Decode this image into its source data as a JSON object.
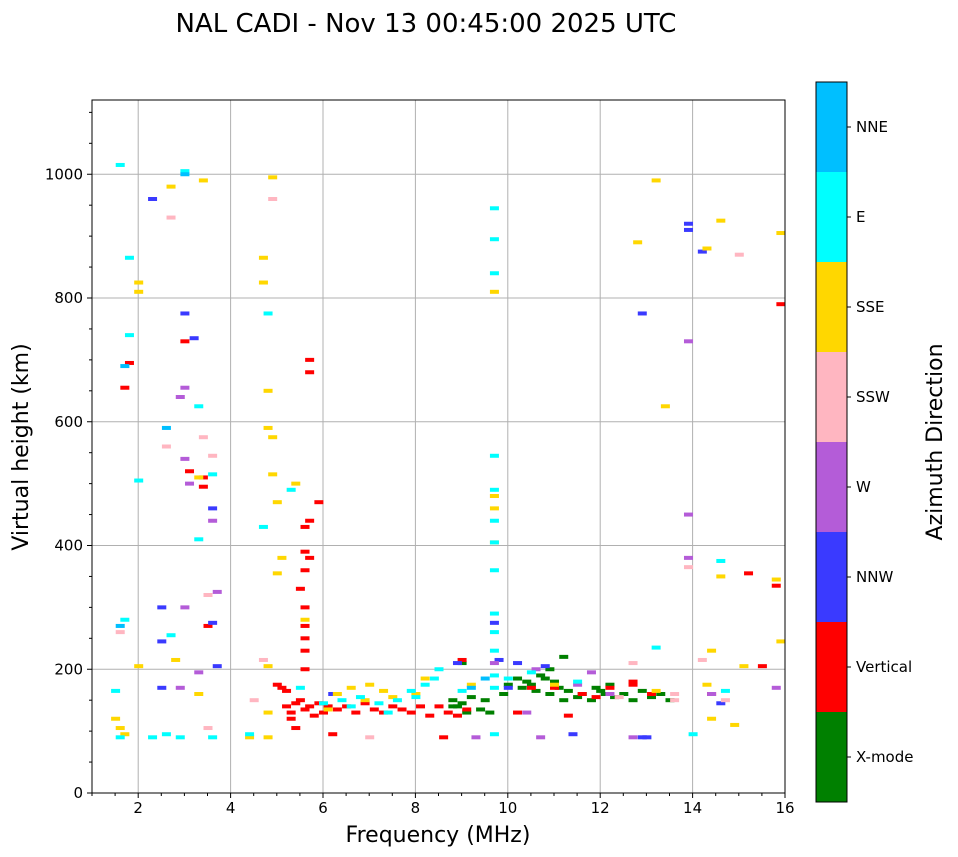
{
  "chart_data": {
    "type": "scatter",
    "title": "NAL CADI - Nov 13 00:45:00 2025 UTC",
    "xlabel": "Frequency (MHz)",
    "ylabel": "Virtual height (km)",
    "xlim": [
      1,
      16
    ],
    "ylim": [
      0,
      1120
    ],
    "xticks": [
      2,
      4,
      6,
      8,
      10,
      12,
      14,
      16
    ],
    "yticks": [
      0,
      200,
      400,
      600,
      800,
      1000
    ],
    "xtick_labels": [
      "2",
      "4",
      "6",
      "8",
      "10",
      "12",
      "14",
      "16"
    ],
    "ytick_labels": [
      "0",
      "200",
      "400",
      "600",
      "800",
      "1000"
    ],
    "grid": true,
    "colorbar": {
      "title": "Azimuth Direction",
      "categories": [
        "X-mode",
        "Vertical",
        "NNW",
        "W",
        "SSW",
        "SSE",
        "E",
        "NNE"
      ],
      "colors": [
        "#008000",
        "#ff0000",
        "#3a3aff",
        "#b45cd8",
        "#ffb6c1",
        "#ffd700",
        "#00ffff",
        "#00bfff"
      ]
    },
    "series": [
      {
        "category": "X-mode",
        "points": [
          [
            8.8,
            150
          ],
          [
            8.9,
            140
          ],
          [
            9.0,
            145
          ],
          [
            9.1,
            130
          ],
          [
            9.2,
            155
          ],
          [
            9.4,
            135
          ],
          [
            9.5,
            150
          ],
          [
            9.6,
            130
          ],
          [
            9.9,
            160
          ],
          [
            10.0,
            175
          ],
          [
            10.2,
            185
          ],
          [
            10.3,
            170
          ],
          [
            10.4,
            180
          ],
          [
            10.5,
            175
          ],
          [
            10.6,
            165
          ],
          [
            10.7,
            190
          ],
          [
            10.8,
            185
          ],
          [
            10.9,
            160
          ],
          [
            11.0,
            180
          ],
          [
            11.1,
            170
          ],
          [
            11.2,
            150
          ],
          [
            11.3,
            165
          ],
          [
            11.5,
            155
          ],
          [
            11.6,
            160
          ],
          [
            11.8,
            150
          ],
          [
            11.9,
            170
          ],
          [
            12.0,
            165
          ],
          [
            12.2,
            175
          ],
          [
            12.3,
            155
          ],
          [
            12.5,
            160
          ],
          [
            12.7,
            150
          ],
          [
            12.9,
            165
          ],
          [
            13.1,
            155
          ],
          [
            13.3,
            160
          ],
          [
            13.5,
            150
          ],
          [
            11.2,
            220
          ],
          [
            9.0,
            210
          ],
          [
            8.8,
            140
          ],
          [
            10.9,
            200
          ],
          [
            12.1,
            160
          ]
        ]
      },
      {
        "category": "Vertical",
        "points": [
          [
            5.2,
            140
          ],
          [
            5.3,
            130
          ],
          [
            5.4,
            145
          ],
          [
            5.5,
            150
          ],
          [
            5.6,
            135
          ],
          [
            5.7,
            140
          ],
          [
            5.8,
            125
          ],
          [
            5.9,
            145
          ],
          [
            6.0,
            130
          ],
          [
            6.1,
            140
          ],
          [
            6.3,
            135
          ],
          [
            6.5,
            140
          ],
          [
            6.7,
            130
          ],
          [
            6.9,
            145
          ],
          [
            7.1,
            135
          ],
          [
            7.3,
            130
          ],
          [
            7.5,
            140
          ],
          [
            7.7,
            135
          ],
          [
            7.9,
            130
          ],
          [
            8.1,
            140
          ],
          [
            8.3,
            125
          ],
          [
            8.5,
            140
          ],
          [
            8.7,
            130
          ],
          [
            8.9,
            125
          ],
          [
            9.1,
            135
          ],
          [
            10.2,
            130
          ],
          [
            10.5,
            170
          ],
          [
            11.0,
            170
          ],
          [
            11.3,
            125
          ],
          [
            11.6,
            160
          ],
          [
            11.9,
            155
          ],
          [
            12.2,
            170
          ],
          [
            12.7,
            175
          ],
          [
            13.1,
            160
          ],
          [
            14.4,
            160
          ],
          [
            15.2,
            355
          ],
          [
            15.8,
            335
          ],
          [
            15.9,
            790
          ],
          [
            15.5,
            205
          ],
          [
            12.7,
            180
          ],
          [
            5.6,
            200
          ],
          [
            5.6,
            230
          ],
          [
            5.6,
            250
          ],
          [
            5.6,
            270
          ],
          [
            5.6,
            300
          ],
          [
            5.5,
            330
          ],
          [
            5.6,
            360
          ],
          [
            5.7,
            380
          ],
          [
            5.6,
            390
          ],
          [
            5.6,
            430
          ],
          [
            5.9,
            470
          ],
          [
            5.7,
            440
          ],
          [
            6.2,
            95
          ],
          [
            5.4,
            105
          ],
          [
            3.1,
            520
          ],
          [
            3.0,
            730
          ],
          [
            3.4,
            495
          ],
          [
            3.5,
            270
          ],
          [
            1.7,
            655
          ],
          [
            1.8,
            695
          ],
          [
            5.2,
            165
          ],
          [
            5.1,
            170
          ],
          [
            5.0,
            175
          ],
          [
            5.7,
            680
          ],
          [
            5.7,
            700
          ],
          [
            3.4,
            510
          ],
          [
            9.0,
            215
          ],
          [
            8.6,
            90
          ],
          [
            5.3,
            120
          ]
        ]
      },
      {
        "category": "NNW",
        "points": [
          [
            8.9,
            210
          ],
          [
            9.8,
            215
          ],
          [
            10.2,
            210
          ],
          [
            10.8,
            205
          ],
          [
            12.9,
            775
          ],
          [
            12.9,
            90
          ],
          [
            13.9,
            920
          ],
          [
            13.9,
            910
          ],
          [
            14.2,
            875
          ],
          [
            14.6,
            145
          ],
          [
            2.5,
            300
          ],
          [
            2.5,
            170
          ],
          [
            3.0,
            775
          ],
          [
            3.6,
            460
          ],
          [
            3.7,
            205
          ],
          [
            3.2,
            735
          ],
          [
            2.3,
            960
          ],
          [
            2.5,
            245
          ],
          [
            3.6,
            275
          ],
          [
            9.7,
            275
          ],
          [
            10.0,
            170
          ],
          [
            11.4,
            95
          ],
          [
            13.0,
            90
          ],
          [
            6.2,
            160
          ]
        ]
      },
      {
        "category": "W",
        "points": [
          [
            9.7,
            210
          ],
          [
            10.6,
            200
          ],
          [
            11.8,
            195
          ],
          [
            13.9,
            730
          ],
          [
            13.9,
            450
          ],
          [
            13.9,
            380
          ],
          [
            15.8,
            170
          ],
          [
            12.7,
            90
          ],
          [
            10.7,
            90
          ],
          [
            9.3,
            90
          ],
          [
            3.0,
            655
          ],
          [
            3.0,
            540
          ],
          [
            2.9,
            640
          ],
          [
            3.1,
            500
          ],
          [
            3.6,
            440
          ],
          [
            3.7,
            325
          ],
          [
            2.9,
            170
          ],
          [
            3.3,
            195
          ],
          [
            10.4,
            130
          ],
          [
            11.5,
            175
          ],
          [
            14.4,
            160
          ],
          [
            12.2,
            160
          ],
          [
            3.0,
            300
          ]
        ]
      },
      {
        "category": "SSW",
        "points": [
          [
            12.7,
            210
          ],
          [
            13.6,
            160
          ],
          [
            14.2,
            215
          ],
          [
            14.7,
            150
          ],
          [
            15.0,
            870
          ],
          [
            13.9,
            365
          ],
          [
            3.4,
            575
          ],
          [
            3.6,
            545
          ],
          [
            3.5,
            320
          ],
          [
            4.7,
            215
          ],
          [
            4.5,
            150
          ],
          [
            2.6,
            560
          ],
          [
            2.7,
            930
          ],
          [
            3.5,
            105
          ],
          [
            1.6,
            260
          ],
          [
            7.0,
            90
          ],
          [
            4.9,
            960
          ],
          [
            13.6,
            150
          ],
          [
            12.4,
            155
          ],
          [
            9.7,
            480
          ]
        ]
      },
      {
        "category": "SSE",
        "points": [
          [
            13.2,
            990
          ],
          [
            12.8,
            890
          ],
          [
            13.4,
            625
          ],
          [
            14.3,
            880
          ],
          [
            14.6,
            925
          ],
          [
            15.9,
            905
          ],
          [
            14.6,
            350
          ],
          [
            15.8,
            345
          ],
          [
            14.4,
            230
          ],
          [
            15.9,
            245
          ],
          [
            14.3,
            175
          ],
          [
            14.9,
            110
          ],
          [
            14.4,
            120
          ],
          [
            15.1,
            205
          ],
          [
            13.2,
            165
          ],
          [
            11.0,
            175
          ],
          [
            9.7,
            480
          ],
          [
            9.7,
            460
          ],
          [
            9.7,
            405
          ],
          [
            9.7,
            810
          ],
          [
            4.7,
            865
          ],
          [
            4.7,
            825
          ],
          [
            4.8,
            650
          ],
          [
            4.8,
            590
          ],
          [
            4.9,
            575
          ],
          [
            4.9,
            515
          ],
          [
            5.0,
            470
          ],
          [
            5.1,
            380
          ],
          [
            5.0,
            355
          ],
          [
            5.4,
            500
          ],
          [
            4.8,
            205
          ],
          [
            4.8,
            130
          ],
          [
            4.8,
            90
          ],
          [
            2.0,
            810
          ],
          [
            2.0,
            825
          ],
          [
            2.0,
            205
          ],
          [
            2.7,
            980
          ],
          [
            3.4,
            990
          ],
          [
            3.3,
            510
          ],
          [
            3.3,
            160
          ],
          [
            2.8,
            215
          ],
          [
            1.5,
            120
          ],
          [
            1.6,
            105
          ],
          [
            1.7,
            95
          ],
          [
            6.3,
            160
          ],
          [
            6.6,
            170
          ],
          [
            7.0,
            175
          ],
          [
            7.3,
            165
          ],
          [
            8.0,
            160
          ],
          [
            8.2,
            185
          ],
          [
            4.9,
            995
          ],
          [
            5.6,
            280
          ],
          [
            4.4,
            90
          ],
          [
            6.1,
            135
          ],
          [
            6.9,
            150
          ],
          [
            7.5,
            155
          ],
          [
            9.2,
            175
          ]
        ]
      },
      {
        "category": "E",
        "points": [
          [
            9.7,
            945
          ],
          [
            9.7,
            895
          ],
          [
            9.7,
            840
          ],
          [
            9.7,
            545
          ],
          [
            9.7,
            490
          ],
          [
            9.7,
            440
          ],
          [
            9.7,
            405
          ],
          [
            9.7,
            360
          ],
          [
            9.7,
            290
          ],
          [
            9.7,
            260
          ],
          [
            9.7,
            230
          ],
          [
            9.7,
            170
          ],
          [
            9.7,
            95
          ],
          [
            9.7,
            190
          ],
          [
            10.0,
            185
          ],
          [
            10.5,
            195
          ],
          [
            11.5,
            180
          ],
          [
            13.2,
            235
          ],
          [
            14.0,
            95
          ],
          [
            14.6,
            375
          ],
          [
            14.7,
            165
          ],
          [
            7.9,
            165
          ],
          [
            8.2,
            175
          ],
          [
            8.4,
            185
          ],
          [
            8.0,
            155
          ],
          [
            7.6,
            150
          ],
          [
            7.2,
            145
          ],
          [
            6.8,
            155
          ],
          [
            6.4,
            150
          ],
          [
            6.0,
            145
          ],
          [
            3.3,
            625
          ],
          [
            3.6,
            515
          ],
          [
            3.3,
            410
          ],
          [
            2.0,
            505
          ],
          [
            1.8,
            740
          ],
          [
            1.7,
            280
          ],
          [
            1.5,
            165
          ],
          [
            1.6,
            90
          ],
          [
            2.3,
            90
          ],
          [
            2.6,
            95
          ],
          [
            3.6,
            90
          ],
          [
            4.4,
            95
          ],
          [
            4.7,
            430
          ],
          [
            4.8,
            775
          ],
          [
            5.3,
            490
          ],
          [
            1.6,
            1015
          ],
          [
            3.0,
            1005
          ],
          [
            1.8,
            865
          ],
          [
            2.7,
            255
          ],
          [
            2.9,
            90
          ],
          [
            8.5,
            200
          ],
          [
            9.0,
            165
          ],
          [
            5.5,
            170
          ],
          [
            6.6,
            140
          ],
          [
            7.4,
            130
          ]
        ]
      },
      {
        "category": "NNE",
        "points": [
          [
            1.7,
            690
          ],
          [
            3.0,
            1000
          ],
          [
            2.6,
            590
          ],
          [
            1.6,
            270
          ],
          [
            9.2,
            170
          ],
          [
            9.5,
            185
          ]
        ]
      }
    ]
  }
}
